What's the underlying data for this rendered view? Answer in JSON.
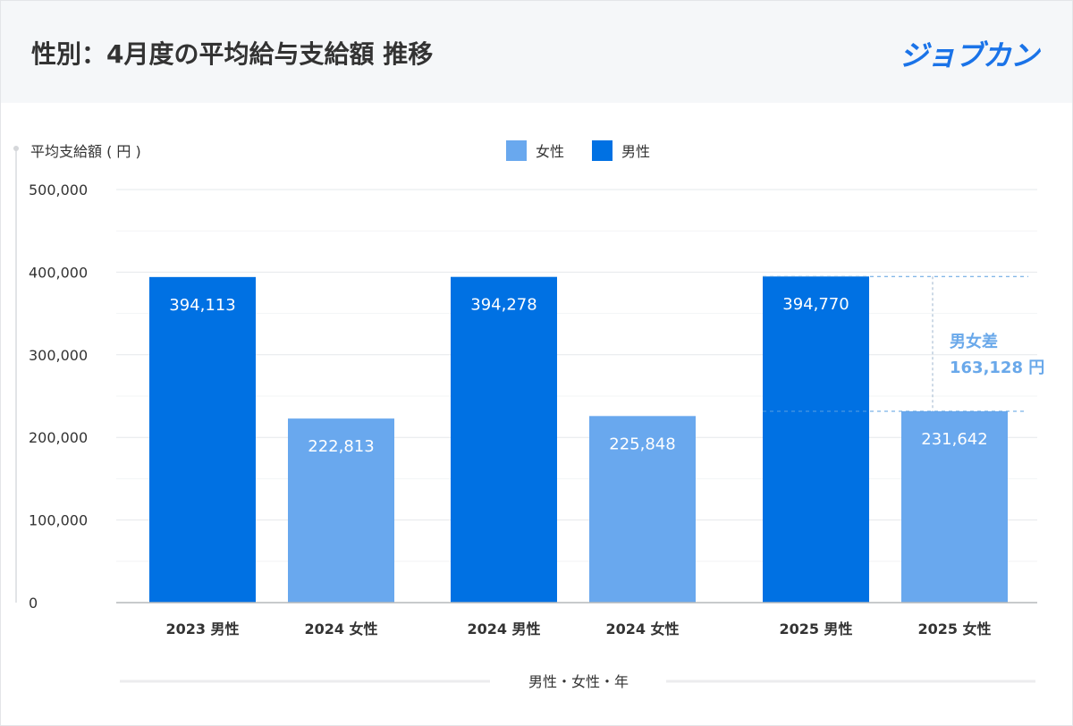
{
  "header": {
    "title": "性別：4月度の平均給与支給額 推移",
    "logo": "ジョブカン"
  },
  "chart_data": {
    "type": "bar",
    "title": "性別：4月度の平均給与支給額 推移",
    "ylabel": "平均支給額 ( 円 )",
    "xlabel": "男性・女性・年",
    "ylim": [
      0,
      500000
    ],
    "yticks": [
      0,
      100000,
      200000,
      300000,
      400000,
      500000
    ],
    "ytick_labels": [
      "0",
      "100,000",
      "200,000",
      "300,000",
      "400,000",
      "500,000"
    ],
    "grid": true,
    "legend": {
      "placement": "top-center",
      "entries": [
        {
          "name": "女性",
          "color": "#69a8ee"
        },
        {
          "name": "男性",
          "color": "#0071e3"
        }
      ]
    },
    "categories": [
      "2023 男性",
      "2024  女性",
      "2024  男性",
      "2024  女性",
      "2025  男性",
      "2025  女性"
    ],
    "values": [
      394113,
      222813,
      394278,
      225848,
      394770,
      231642
    ],
    "value_labels": [
      "394,113",
      "222,813",
      "394,278",
      "225,848",
      "394,770",
      "231,642"
    ],
    "series_of_bar": [
      "男性",
      "女性",
      "男性",
      "女性",
      "男性",
      "女性"
    ],
    "annotation": {
      "title": "男女差",
      "value_label": "163,128 円",
      "value": 163128
    }
  }
}
